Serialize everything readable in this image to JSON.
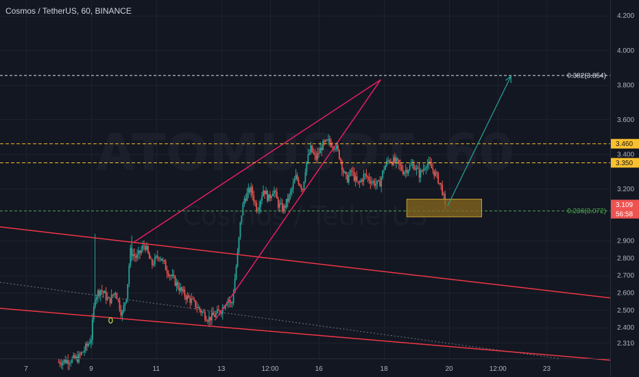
{
  "header": {
    "title": "Cosmos / TetherUS, 60, BINANCE"
  },
  "watermark": {
    "symbol": "ATOMUSDT, 60",
    "name": "Cosmos / TetherUS"
  },
  "price_axis": {
    "ticks": [
      "4.200",
      "4.000",
      "3.800",
      "3.600",
      "3.400",
      "3.200",
      "2.900",
      "2.800",
      "2.700",
      "2.600",
      "2.500",
      "2.400",
      "2.310"
    ],
    "tick_values": [
      4.2,
      4.0,
      3.8,
      3.6,
      3.4,
      3.2,
      2.9,
      2.8,
      2.7,
      2.6,
      2.5,
      2.4,
      2.31
    ],
    "labels": [
      {
        "text": "3.460",
        "value": 3.46,
        "bg": "#fbc02d",
        "fg": "#131722"
      },
      {
        "text": "3.350",
        "value": 3.35,
        "bg": "#fbc02d",
        "fg": "#131722"
      },
      {
        "text": "3.109",
        "value": 3.109,
        "bg": "#ef5350",
        "fg": "#ffffff"
      },
      {
        "text": "56:58",
        "value": 3.056,
        "bg": "#ef5350",
        "fg": "#ffffff"
      }
    ]
  },
  "time_axis": {
    "ticks": [
      "7",
      "9",
      "11",
      "13",
      "12:00",
      "16",
      "18",
      "20",
      "12:00",
      "23"
    ],
    "tick_positions": [
      6.0,
      8.0,
      10.0,
      12.0,
      13.5,
      15.0,
      17.0,
      19.0,
      20.5,
      22.0
    ]
  },
  "levels": {
    "fib_382": {
      "text": "0.382(3.854)",
      "value": 3.854,
      "color": "#e0e3eb"
    },
    "fib_236": {
      "text": "0.236(3.072)",
      "value": 3.072,
      "color": "#4caf50"
    },
    "res_high": {
      "value": 3.46,
      "color": "#fbc02d"
    },
    "res_low": {
      "value": 3.35,
      "color": "#fbc02d"
    }
  },
  "colors": {
    "background": "#131722",
    "up": "#26a69a",
    "down": "#ef5350",
    "wedge": "#e91e63",
    "channel": "#f23645",
    "arrow": "#26a69a",
    "box_fill": "#8a6a1e",
    "box_stroke": "#c8a032",
    "dotted": "#787b86"
  },
  "chart_data": {
    "type": "candlestick",
    "title": "Cosmos / TetherUS, 60, BINANCE",
    "x_unit": "day",
    "y_unit": "USDT",
    "ylim": [
      2.22,
      4.29
    ],
    "xlim": [
      5.2,
      23.95
    ],
    "price_path": [
      [
        7.0,
        2.2
      ],
      [
        7.6,
        2.22
      ],
      [
        7.9,
        2.3
      ],
      [
        8.0,
        2.34
      ],
      [
        8.12,
        2.58
      ],
      [
        8.3,
        2.62
      ],
      [
        8.55,
        2.55
      ],
      [
        8.75,
        2.61
      ],
      [
        8.95,
        2.47
      ],
      [
        9.1,
        2.6
      ],
      [
        9.2,
        2.84
      ],
      [
        9.4,
        2.8
      ],
      [
        9.65,
        2.88
      ],
      [
        9.85,
        2.76
      ],
      [
        10.1,
        2.82
      ],
      [
        10.3,
        2.74
      ],
      [
        10.55,
        2.67
      ],
      [
        10.85,
        2.59
      ],
      [
        11.1,
        2.55
      ],
      [
        11.35,
        2.5
      ],
      [
        11.6,
        2.45
      ],
      [
        11.8,
        2.47
      ],
      [
        12.0,
        2.5
      ],
      [
        12.2,
        2.57
      ],
      [
        12.32,
        2.52
      ],
      [
        12.5,
        2.82
      ],
      [
        12.6,
        3.03
      ],
      [
        12.7,
        3.14
      ],
      [
        12.9,
        3.2
      ],
      [
        13.1,
        3.08
      ],
      [
        13.3,
        3.2
      ],
      [
        13.45,
        3.14
      ],
      [
        13.6,
        3.2
      ],
      [
        13.75,
        3.11
      ],
      [
        13.9,
        3.08
      ],
      [
        14.1,
        3.16
      ],
      [
        14.3,
        3.27
      ],
      [
        14.5,
        3.2
      ],
      [
        14.6,
        3.34
      ],
      [
        14.75,
        3.43
      ],
      [
        14.9,
        3.37
      ],
      [
        15.1,
        3.45
      ],
      [
        15.3,
        3.47
      ],
      [
        15.5,
        3.45
      ],
      [
        15.65,
        3.38
      ],
      [
        15.75,
        3.3
      ],
      [
        15.85,
        3.25
      ],
      [
        16.0,
        3.3
      ],
      [
        16.2,
        3.22
      ],
      [
        16.4,
        3.28
      ],
      [
        16.65,
        3.24
      ],
      [
        16.85,
        3.22
      ],
      [
        17.0,
        3.32
      ],
      [
        17.15,
        3.37
      ],
      [
        17.4,
        3.35
      ],
      [
        17.6,
        3.3
      ],
      [
        17.9,
        3.34
      ],
      [
        18.1,
        3.28
      ],
      [
        18.3,
        3.35
      ],
      [
        18.5,
        3.31
      ],
      [
        18.65,
        3.26
      ],
      [
        18.78,
        3.2
      ],
      [
        18.85,
        3.13
      ],
      [
        18.9,
        3.109
      ]
    ],
    "annotations": {
      "wedge_upper": [
        [
          9.3,
          2.89
        ],
        [
          16.9,
          3.83
        ]
      ],
      "wedge_lower": [
        [
          11.8,
          2.44
        ],
        [
          16.9,
          3.83
        ]
      ],
      "channel_upper": [
        [
          5.2,
          2.98
        ],
        [
          23.95,
          2.57
        ]
      ],
      "channel_lower": [
        [
          5.2,
          2.51
        ],
        [
          23.95,
          2.21
        ]
      ],
      "dotted_trend": [
        [
          5.2,
          2.66
        ],
        [
          22.4,
          2.22
        ]
      ],
      "arrow": [
        [
          18.95,
          3.1
        ],
        [
          20.9,
          3.85
        ]
      ],
      "target_box": {
        "x1": 17.7,
        "x2": 20.0,
        "y1": 3.14,
        "y2": 3.038
      },
      "pivot_marker": {
        "x": 8.6,
        "y": 2.44
      }
    }
  }
}
